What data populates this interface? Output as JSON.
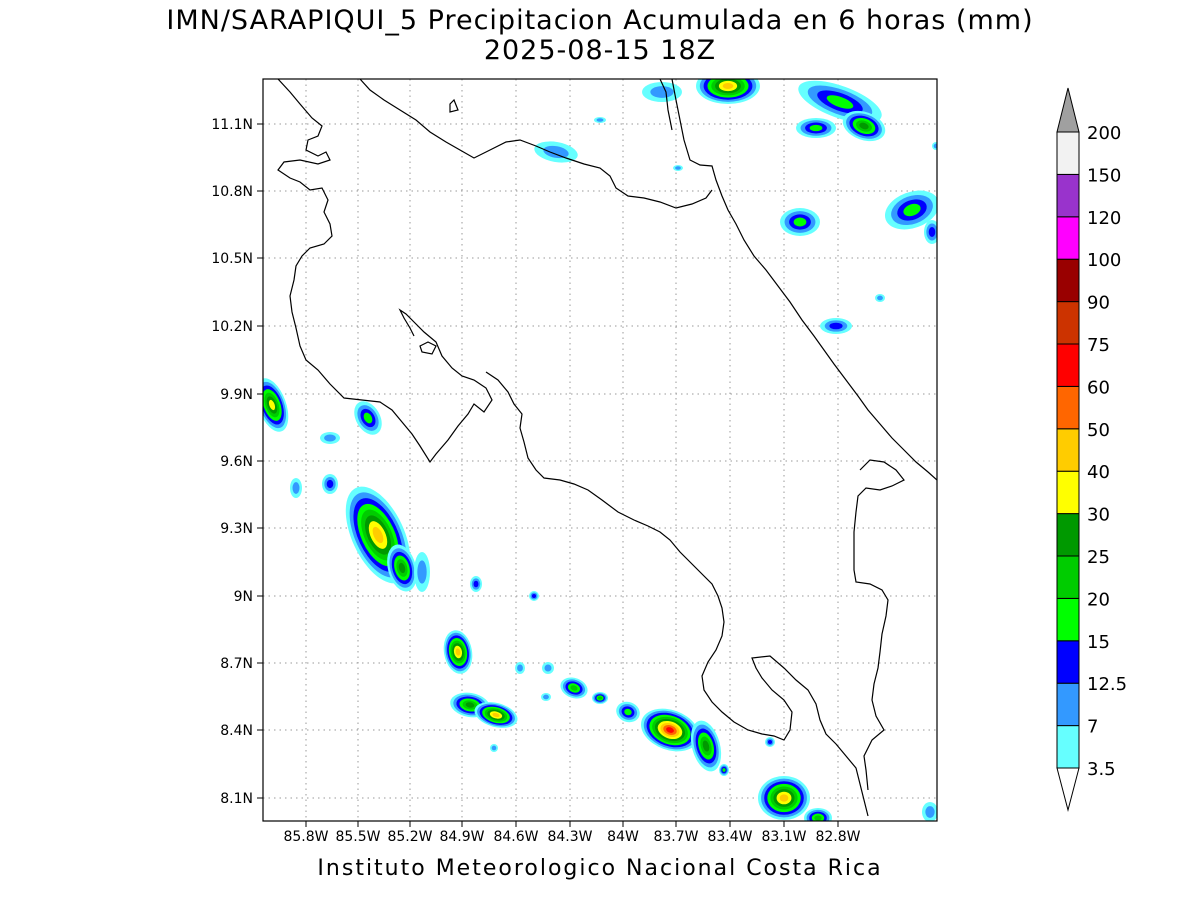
{
  "title": {
    "line1": "IMN/SARAPIQUI_5 Precipitacion Acumulada en 6 horas (mm)",
    "line2": "2025-08-15 18Z"
  },
  "map": {
    "lat_labels": [
      "11.1N",
      "10.8N",
      "10.5N",
      "10.2N",
      "9.9N",
      "9.6N",
      "9.3N",
      "9N",
      "8.7N",
      "8.4N",
      "8.1N"
    ],
    "lon_labels": [
      "85.8W",
      "85.5W",
      "85.2W",
      "84.9W",
      "84.6W",
      "84.3W",
      "84W",
      "83.7W",
      "83.4W",
      "83.1W",
      "82.8W"
    ],
    "grid": "dotted"
  },
  "colorbar": {
    "levels": [
      "3.5",
      "7",
      "12.5",
      "15",
      "20",
      "25",
      "30",
      "40",
      "50",
      "60",
      "75",
      "90",
      "100",
      "120",
      "150",
      "200"
    ],
    "colors": [
      "#66ffff",
      "#3399ff",
      "#0000ff",
      "#00ff00",
      "#00cc00",
      "#009900",
      "#ffff00",
      "#ffcc00",
      "#ff6600",
      "#ff0000",
      "#cc3300",
      "#990000",
      "#ff00ff",
      "#9933cc",
      "#f2f2f2",
      "#a0a0a0"
    ]
  },
  "footer": "Instituto Meteorologico Nacional Costa Rica"
}
